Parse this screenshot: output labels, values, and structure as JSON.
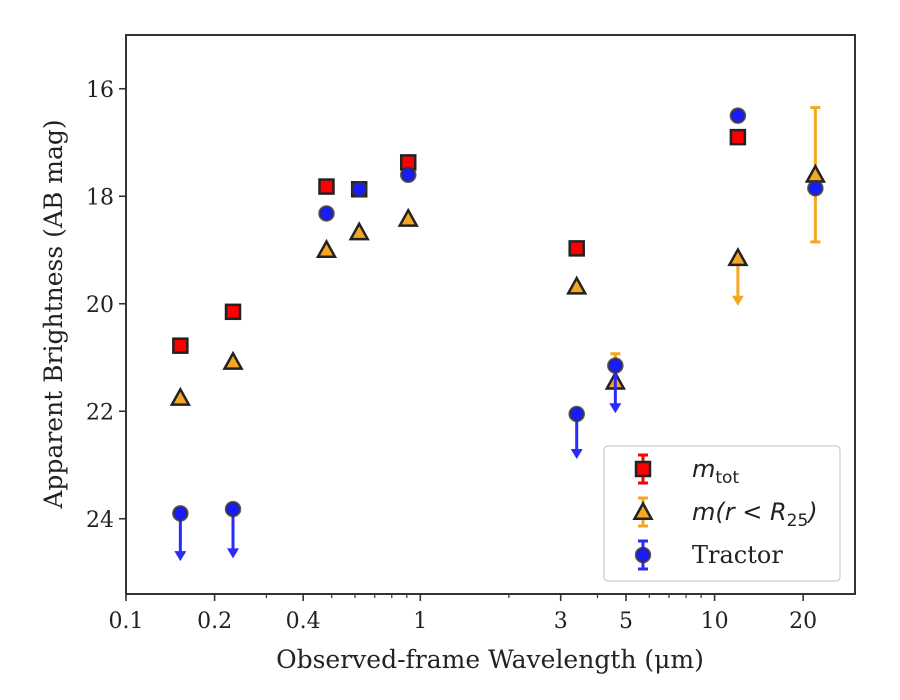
{
  "chart_data": {
    "type": "scatter",
    "xlabel": "Observed-frame Wavelength (μm)",
    "ylabel": "Apparent Brightness (AB mag)",
    "x_scale": "log",
    "xlim": [
      0.1,
      30
    ],
    "ylim": [
      25.4,
      15.0
    ],
    "y_inverted": true,
    "x_ticks": [
      0.1,
      0.2,
      0.4,
      1,
      3,
      5,
      10,
      20
    ],
    "x_tick_labels": [
      "0.1",
      "0.2",
      "0.4",
      "1",
      "3",
      "5",
      "10",
      "20"
    ],
    "y_ticks": [
      16,
      18,
      20,
      22,
      24
    ],
    "y_tick_labels": [
      "16",
      "18",
      "20",
      "22",
      "24"
    ],
    "legend_position": "lower-right",
    "series": [
      {
        "key": "mtot",
        "marker": "square",
        "color": "#ff0000",
        "edge_color": "#222222",
        "points": [
          {
            "x": 0.153,
            "y": 20.78
          },
          {
            "x": 0.231,
            "y": 20.15
          },
          {
            "x": 0.48,
            "y": 17.82
          },
          {
            "x": 0.62,
            "y": 17.87
          },
          {
            "x": 0.91,
            "y": 17.37
          },
          {
            "x": 3.4,
            "y": 18.97
          },
          {
            "x": 12.0,
            "y": 16.9
          }
        ]
      },
      {
        "key": "mr25",
        "marker": "triangle",
        "color": "#f5a623",
        "edge_color": "#222222",
        "points": [
          {
            "x": 0.153,
            "y": 21.75
          },
          {
            "x": 0.231,
            "y": 21.08
          },
          {
            "x": 0.48,
            "y": 19.0
          },
          {
            "x": 0.62,
            "y": 18.67
          },
          {
            "x": 0.91,
            "y": 18.42
          },
          {
            "x": 3.4,
            "y": 19.68
          },
          {
            "x": 4.6,
            "y": 21.45,
            "err": [
              21.5,
              20.93
            ]
          },
          {
            "x": 12.0,
            "y": 19.15,
            "upper_limit": 20.0
          },
          {
            "x": 22.0,
            "y": 17.6,
            "err": [
              18.85,
              16.35
            ]
          }
        ]
      },
      {
        "key": "tractor",
        "marker": "circle",
        "color": "#1a1aff",
        "edge_color": "#333333",
        "points": [
          {
            "x": 0.153,
            "y": 23.9,
            "upper_limit": 24.75
          },
          {
            "x": 0.231,
            "y": 23.82,
            "upper_limit": 24.7
          },
          {
            "x": 0.48,
            "y": 18.32
          },
          {
            "x": 0.62,
            "y": 17.87
          },
          {
            "x": 0.91,
            "y": 17.6
          },
          {
            "x": 3.4,
            "y": 22.05,
            "upper_limit": 22.85
          },
          {
            "x": 4.6,
            "y": 21.15,
            "upper_limit": 22.0
          },
          {
            "x": 12.0,
            "y": 16.5
          },
          {
            "x": 22.0,
            "y": 17.85
          }
        ]
      }
    ],
    "legend": [
      {
        "key": "mtot",
        "label": "m",
        "sub": "tot"
      },
      {
        "key": "mr25",
        "label": "m(r < R",
        "sub": "25",
        "tail": ")"
      },
      {
        "key": "tractor",
        "label": "Tractor"
      }
    ]
  }
}
